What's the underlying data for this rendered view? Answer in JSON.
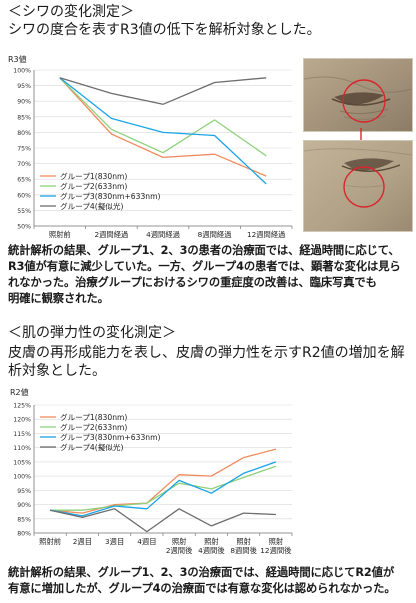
{
  "section1": {
    "heading": "＜シワの変化測定＞",
    "subheading": "シワの度合を表すR3値の低下を解析対象とした。",
    "body_lines": [
      "統計解析の結果、グループ1、2、3の患者の治療面では、経過時間に応じて、",
      "R3値が有意に減少していた。一方、グループ4の患者では、顕著な変化は見ら",
      "れなかった。治療グループにおけるシワの重症度の改善は、臨床写真でも",
      "明確に観察された。"
    ]
  },
  "section2": {
    "heading": "＜肌の弾力性の変化測定＞",
    "subheading_lines": [
      "皮膚の再形成能力を表し、皮膚の弾力性を示すR2値の増加を解",
      "析対象とした。"
    ],
    "body_lines": [
      "統計解析の結果、グループ1、2、3の治療面では、経過時間に応じてR2値が",
      "有意に増加したが、グループ4の治療面では有意な変化は認められなかった。"
    ]
  },
  "photos": {
    "arrow_color": "#d8262c",
    "circle_color": "#d8262c"
  },
  "chart_data": [
    {
      "type": "line",
      "ylabel": "R3値",
      "ylim": [
        50,
        100
      ],
      "yticks": [
        50,
        55,
        60,
        65,
        70,
        75,
        80,
        85,
        90,
        95,
        100
      ],
      "ytick_labels": [
        "50%",
        "55%",
        "60%",
        "65%",
        "70%",
        "75%",
        "80%",
        "85%",
        "90%",
        "95%",
        "100%"
      ],
      "categories": [
        [
          "照射前"
        ],
        [
          "2週間経過"
        ],
        [
          "4週間経過"
        ],
        [
          "8週間経過"
        ],
        [
          "12週間経過"
        ]
      ],
      "legend_position": "bottom-left",
      "series": [
        {
          "name": "グループ1(830nm)",
          "color": "#f08a5d",
          "values": [
            97.5,
            79.5,
            72.0,
            73.0,
            66.0
          ]
        },
        {
          "name": "グループ2(633nm)",
          "color": "#8fd17c",
          "values": [
            97.5,
            81.0,
            73.5,
            84.0,
            72.5
          ]
        },
        {
          "name": "グループ3(830nm+633nm)",
          "color": "#1aa3e8",
          "values": [
            97.5,
            84.5,
            80.0,
            79.0,
            63.5
          ]
        },
        {
          "name": "グループ4(擬似光)",
          "color": "#6d6d6d",
          "values": [
            97.5,
            92.5,
            89.0,
            96.0,
            97.5
          ]
        }
      ]
    },
    {
      "type": "line",
      "ylabel": "R2値",
      "ylim": [
        80,
        125
      ],
      "yticks": [
        80,
        85,
        90,
        95,
        100,
        105,
        110,
        115,
        120,
        125
      ],
      "ytick_labels": [
        "80%",
        "85%",
        "90%",
        "95%",
        "100%",
        "105%",
        "110%",
        "115%",
        "120%",
        "125%"
      ],
      "categories": [
        [
          "照射前"
        ],
        [
          "2週目"
        ],
        [
          "3週目"
        ],
        [
          "4週目"
        ],
        [
          "照射",
          "2週間後"
        ],
        [
          "照射",
          "4週間後"
        ],
        [
          "照射",
          "8週間後"
        ],
        [
          "照射",
          "12週間後"
        ]
      ],
      "legend_position": "top-left",
      "series": [
        {
          "name": "グループ1(830nm)",
          "color": "#f08a5d",
          "values": [
            88.0,
            87.0,
            90.0,
            90.5,
            100.5,
            100.0,
            106.5,
            109.5
          ]
        },
        {
          "name": "グループ2(633nm)",
          "color": "#8fd17c",
          "values": [
            88.0,
            88.0,
            89.5,
            90.5,
            97.5,
            95.5,
            99.5,
            103.5
          ]
        },
        {
          "name": "グループ3(830nm+633nm)",
          "color": "#1aa3e8",
          "values": [
            88.0,
            86.0,
            89.5,
            88.5,
            98.5,
            94.0,
            101.0,
            105.0
          ]
        },
        {
          "name": "グループ4(擬似光)",
          "color": "#6d6d6d",
          "values": [
            88.0,
            85.5,
            88.5,
            80.5,
            88.5,
            82.5,
            87.0,
            86.5
          ]
        }
      ]
    }
  ]
}
